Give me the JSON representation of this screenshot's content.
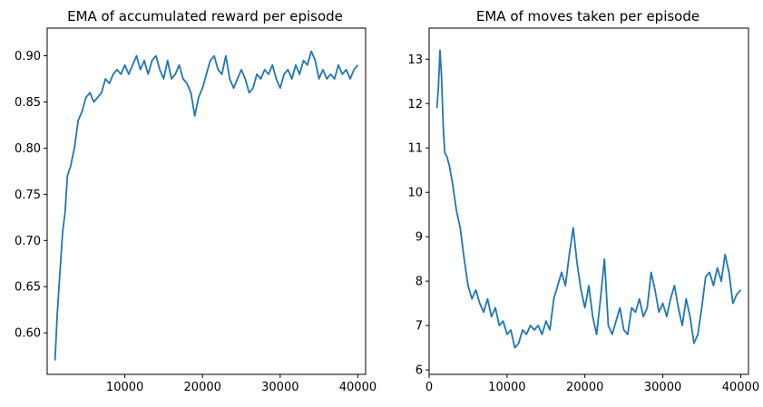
{
  "chart_data": [
    {
      "type": "line",
      "title": "EMA of accumulated reward per episode",
      "xlabel": "",
      "ylabel": "",
      "xlim": [
        0,
        41000
      ],
      "ylim": [
        0.555,
        0.93
      ],
      "xticks": [
        10000,
        20000,
        30000,
        40000
      ],
      "xtick_labels": [
        "10000",
        "20000",
        "30000",
        "40000"
      ],
      "yticks": [
        0.6,
        0.65,
        0.7,
        0.75,
        0.8,
        0.85,
        0.9
      ],
      "ytick_labels": [
        "0.60",
        "0.65",
        "0.70",
        "0.75",
        "0.80",
        "0.85",
        "0.90"
      ],
      "grid": false,
      "color": "#1f77b4",
      "series": [
        {
          "x": [
            1000,
            1300,
            1600,
            2000,
            2300,
            2600,
            3000,
            3500,
            4000,
            4500,
            5000,
            5500,
            6000,
            6500,
            7000,
            7500,
            8000,
            8500,
            9000,
            9500,
            10000,
            10500,
            11000,
            11500,
            12000,
            12500,
            13000,
            13500,
            14000,
            14500,
            15000,
            15500,
            16000,
            16500,
            17000,
            17500,
            18000,
            18500,
            19000,
            19500,
            20000,
            20500,
            21000,
            21500,
            22000,
            22500,
            23000,
            23500,
            24000,
            24500,
            25000,
            25500,
            26000,
            26500,
            27000,
            27500,
            28000,
            28500,
            29000,
            29500,
            30000,
            30500,
            31000,
            31500,
            32000,
            32500,
            33000,
            33500,
            34000,
            34500,
            35000,
            35500,
            36000,
            36500,
            37000,
            37500,
            38000,
            38500,
            39000,
            39500,
            40000
          ],
          "y": [
            0.57,
            0.62,
            0.66,
            0.71,
            0.73,
            0.77,
            0.78,
            0.8,
            0.83,
            0.84,
            0.855,
            0.86,
            0.85,
            0.855,
            0.86,
            0.875,
            0.87,
            0.88,
            0.885,
            0.88,
            0.89,
            0.88,
            0.89,
            0.9,
            0.885,
            0.895,
            0.88,
            0.895,
            0.9,
            0.885,
            0.875,
            0.895,
            0.875,
            0.88,
            0.89,
            0.875,
            0.87,
            0.86,
            0.835,
            0.855,
            0.865,
            0.88,
            0.895,
            0.9,
            0.885,
            0.88,
            0.9,
            0.875,
            0.865,
            0.875,
            0.885,
            0.875,
            0.86,
            0.865,
            0.88,
            0.875,
            0.885,
            0.88,
            0.89,
            0.875,
            0.865,
            0.88,
            0.885,
            0.875,
            0.89,
            0.88,
            0.895,
            0.89,
            0.905,
            0.895,
            0.875,
            0.885,
            0.875,
            0.88,
            0.875,
            0.89,
            0.88,
            0.885,
            0.875,
            0.885,
            0.89
          ]
        }
      ]
    },
    {
      "type": "line",
      "title": "EMA of moves taken per episode",
      "xlabel": "",
      "ylabel": "",
      "xlim": [
        0,
        41000
      ],
      "ylim": [
        5.9,
        13.7
      ],
      "xticks": [
        0,
        10000,
        20000,
        30000,
        40000
      ],
      "xtick_labels": [
        "0",
        "10000",
        "20000",
        "30000",
        "40000"
      ],
      "yticks": [
        6,
        7,
        8,
        9,
        10,
        11,
        12,
        13
      ],
      "ytick_labels": [
        "6",
        "7",
        "8",
        "9",
        "10",
        "11",
        "12",
        "13"
      ],
      "grid": false,
      "color": "#1f77b4",
      "series": [
        {
          "x": [
            1000,
            1200,
            1400,
            1600,
            1800,
            2000,
            2300,
            2600,
            3000,
            3500,
            4000,
            4500,
            5000,
            5500,
            6000,
            6500,
            7000,
            7500,
            8000,
            8500,
            9000,
            9500,
            10000,
            10500,
            11000,
            11500,
            12000,
            12500,
            13000,
            13500,
            14000,
            14500,
            15000,
            15500,
            16000,
            16500,
            17000,
            17500,
            18000,
            18500,
            19000,
            19500,
            20000,
            20500,
            21000,
            21500,
            22000,
            22500,
            23000,
            23500,
            24000,
            24500,
            25000,
            25500,
            26000,
            26500,
            27000,
            27500,
            28000,
            28500,
            29000,
            29500,
            30000,
            30500,
            31000,
            31500,
            32000,
            32500,
            33000,
            33500,
            34000,
            34500,
            35000,
            35500,
            36000,
            36500,
            37000,
            37500,
            38000,
            38500,
            39000,
            39500,
            40000
          ],
          "y": [
            11.9,
            12.4,
            13.2,
            12.6,
            11.5,
            10.9,
            10.8,
            10.6,
            10.2,
            9.6,
            9.2,
            8.5,
            7.9,
            7.6,
            7.8,
            7.5,
            7.3,
            7.6,
            7.2,
            7.4,
            7.0,
            7.1,
            6.8,
            6.9,
            6.5,
            6.6,
            6.9,
            6.8,
            7.0,
            6.9,
            7.0,
            6.8,
            7.1,
            6.9,
            7.6,
            7.9,
            8.2,
            7.9,
            8.6,
            9.2,
            8.4,
            7.8,
            7.4,
            7.9,
            7.2,
            6.8,
            7.6,
            8.5,
            7.0,
            6.8,
            7.1,
            7.4,
            6.9,
            6.8,
            7.4,
            7.3,
            7.6,
            7.2,
            7.4,
            8.2,
            7.8,
            7.3,
            7.5,
            7.2,
            7.6,
            7.9,
            7.4,
            7.0,
            7.6,
            7.2,
            6.6,
            6.8,
            7.4,
            8.1,
            8.2,
            7.9,
            8.3,
            8.0,
            8.6,
            8.2,
            7.5,
            7.7,
            7.8
          ]
        }
      ]
    }
  ]
}
